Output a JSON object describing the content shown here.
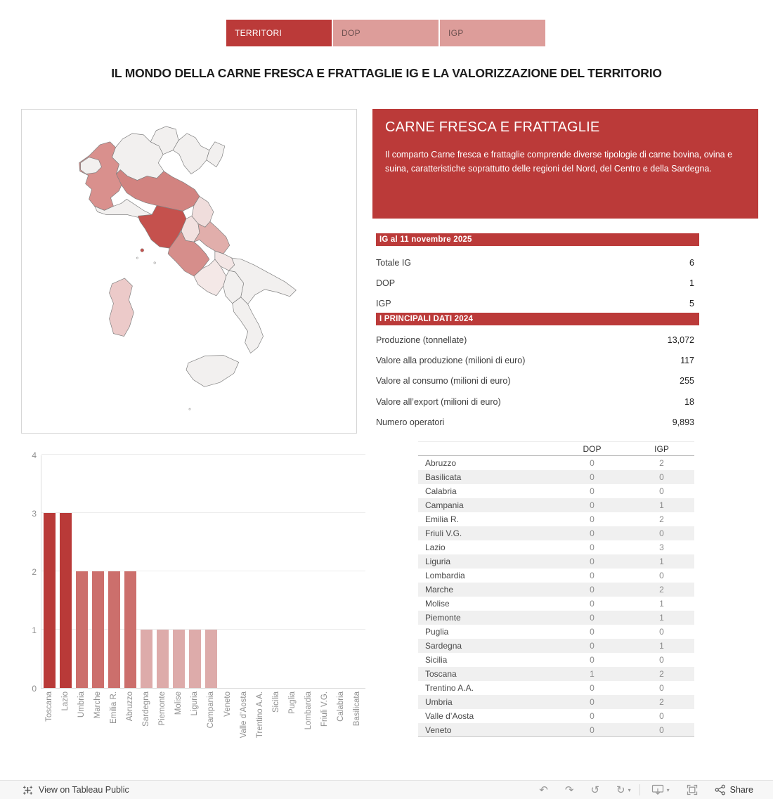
{
  "tabs": [
    {
      "label": "TERRITORI",
      "active": true
    },
    {
      "label": "DOP",
      "active": false
    },
    {
      "label": "IGP",
      "active": false
    }
  ],
  "title": "IL MONDO DELLA CARNE FRESCA E FRATTAGLIE IG E LA VALORIZZAZIONE DEL TERRITORIO",
  "info_panel": {
    "title": "CARNE FRESCA E FRATTAGLIE",
    "body": "Il comparto Carne fresca e frattaglie comprende diverse tipologie di carne bovina, ovina e suina, caratteristiche soprattutto delle regioni del Nord, del Centro e della Sardegna."
  },
  "ig_section": {
    "header": "IG al 11 novembre 2025",
    "rows": [
      {
        "label": "Totale IG",
        "value": "6"
      },
      {
        "label": "DOP",
        "value": "1"
      },
      {
        "label": "IGP",
        "value": "5"
      }
    ]
  },
  "dati_section": {
    "header": "I PRINCIPALI DATI 2024",
    "rows": [
      {
        "label": "Produzione (tonnellate)",
        "value": "13,072"
      },
      {
        "label": "Valore alla produzione (milioni di euro)",
        "value": "117"
      },
      {
        "label": "Valore al consumo (milioni di euro)",
        "value": "255"
      },
      {
        "label": "Valore all’export (milioni di euro)",
        "value": "18"
      },
      {
        "label": "Numero operatori",
        "value": "9,893"
      }
    ]
  },
  "region_table": {
    "columns": [
      "DOP",
      "IGP"
    ],
    "rows": [
      {
        "region": "Abruzzo",
        "dop": "0",
        "igp": "2"
      },
      {
        "region": "Basilicata",
        "dop": "0",
        "igp": "0"
      },
      {
        "region": "Calabria",
        "dop": "0",
        "igp": "0"
      },
      {
        "region": "Campania",
        "dop": "0",
        "igp": "1"
      },
      {
        "region": "Emilia R.",
        "dop": "0",
        "igp": "2"
      },
      {
        "region": "Friuli V.G.",
        "dop": "0",
        "igp": "0"
      },
      {
        "region": "Lazio",
        "dop": "0",
        "igp": "3"
      },
      {
        "region": "Liguria",
        "dop": "0",
        "igp": "1"
      },
      {
        "region": "Lombardia",
        "dop": "0",
        "igp": "0"
      },
      {
        "region": "Marche",
        "dop": "0",
        "igp": "2"
      },
      {
        "region": "Molise",
        "dop": "0",
        "igp": "1"
      },
      {
        "region": "Piemonte",
        "dop": "0",
        "igp": "1"
      },
      {
        "region": "Puglia",
        "dop": "0",
        "igp": "0"
      },
      {
        "region": "Sardegna",
        "dop": "0",
        "igp": "1"
      },
      {
        "region": "Sicilia",
        "dop": "0",
        "igp": "0"
      },
      {
        "region": "Toscana",
        "dop": "1",
        "igp": "2"
      },
      {
        "region": "Trentino A.A.",
        "dop": "0",
        "igp": "0"
      },
      {
        "region": "Umbria",
        "dop": "0",
        "igp": "2"
      },
      {
        "region": "Valle d’Aosta",
        "dop": "0",
        "igp": "0"
      },
      {
        "region": "Veneto",
        "dop": "0",
        "igp": "0"
      }
    ]
  },
  "chart_data": {
    "type": "bar",
    "categories": [
      "Toscana",
      "Lazio",
      "Umbria",
      "Marche",
      "Emilia R.",
      "Abruzzo",
      "Sardegna",
      "Piemonte",
      "Molise",
      "Liguria",
      "Campania",
      "Veneto",
      "Valle d’Aosta",
      "Trentino A.A.",
      "Sicilia",
      "Puglia",
      "Lombardia",
      "Friuli V.G.",
      "Calabria",
      "Basilicata"
    ],
    "values": [
      3,
      3,
      2,
      2,
      2,
      2,
      1,
      1,
      1,
      1,
      1,
      0,
      0,
      0,
      0,
      0,
      0,
      0,
      0,
      0
    ],
    "title": "",
    "xlabel": "",
    "ylabel": "",
    "ylim": [
      0,
      4
    ],
    "yticks": [
      0,
      1,
      2,
      3,
      4
    ],
    "grid": true,
    "legend": "none",
    "bar_colors_by_value": {
      "3": "#b93a38",
      "2": "#cc6f6c",
      "1": "#ddabaa",
      "0": "#ddabaa"
    }
  },
  "map": {
    "title": "choropleth-italy-regions",
    "region_colors": {
      "toscana": "#c5514d",
      "lazio": "#d68e8b",
      "emilia": "#d28380",
      "piemonte": "#d9908d",
      "abruzzo": "#e1aeab",
      "sardegna": "#eccac9",
      "umbria": "#f2e1e0",
      "marche": "#f0dddc",
      "molise": "#f3e6e5",
      "campania": "#f4e8e7"
    },
    "default_fill": "#f2f0ef",
    "stroke": "#808080"
  },
  "footer": {
    "view_on": "View on Tableau Public",
    "share": "Share"
  },
  "colors": {
    "accent_red": "#bb3a39",
    "tab_inactive_bg": "#dd9d9a",
    "table_alt_row": "#f0f0f0",
    "footer_bg": "#f7f7f7"
  }
}
